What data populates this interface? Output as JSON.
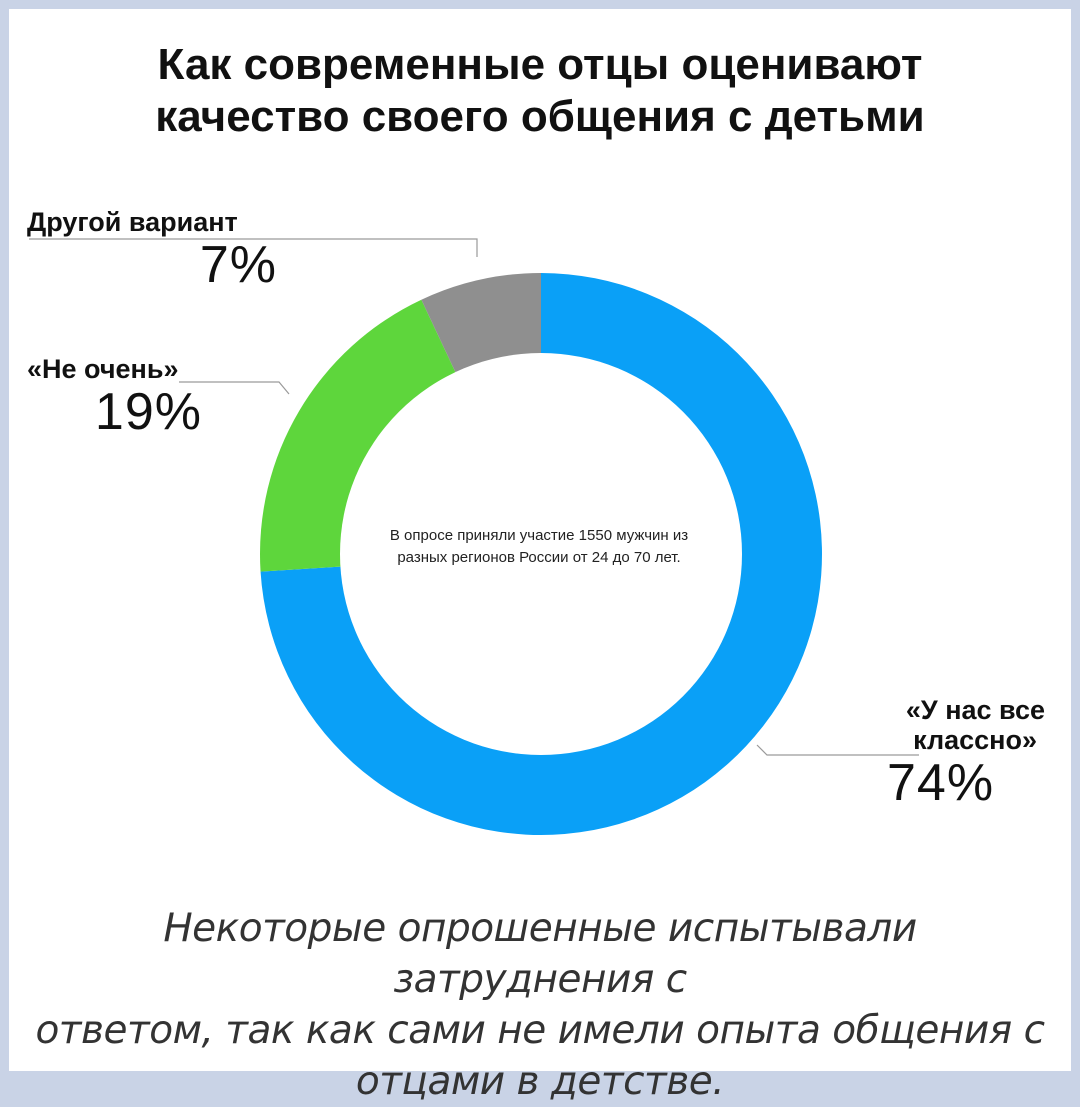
{
  "title": {
    "line1": "Как современные отцы оценивают",
    "line2": "качество своего общения с детьми"
  },
  "center_note": {
    "line1": "В опросе приняли участие 1550 мужчин из",
    "line2": "разных регионов России от 24 до 70 лет."
  },
  "footnote": {
    "line1": "Некоторые опрошенные испытывали затруднения с",
    "line2": "ответом, так как сами не имели опыта общения с",
    "line3": "отцами в детстве."
  },
  "labels": {
    "other": {
      "name": "Другой вариант",
      "pct": "7%"
    },
    "not_really": {
      "name": "«Не очень»",
      "pct": "19%"
    },
    "great": {
      "name_line1": "«У нас все",
      "name_line2": "классно»",
      "pct": "74%"
    }
  },
  "chart_data": {
    "type": "pie",
    "donut": true,
    "title": "Как современные отцы оценивают качество своего общения с детьми",
    "categories": [
      "«У нас все классно»",
      "«Не очень»",
      "Другой вариант"
    ],
    "values": [
      74,
      19,
      7
    ],
    "unit": "%",
    "colors": [
      "#0aa0f7",
      "#5ed63c",
      "#8f8f8f"
    ],
    "start_angle_deg": 0,
    "direction": "clockwise"
  }
}
